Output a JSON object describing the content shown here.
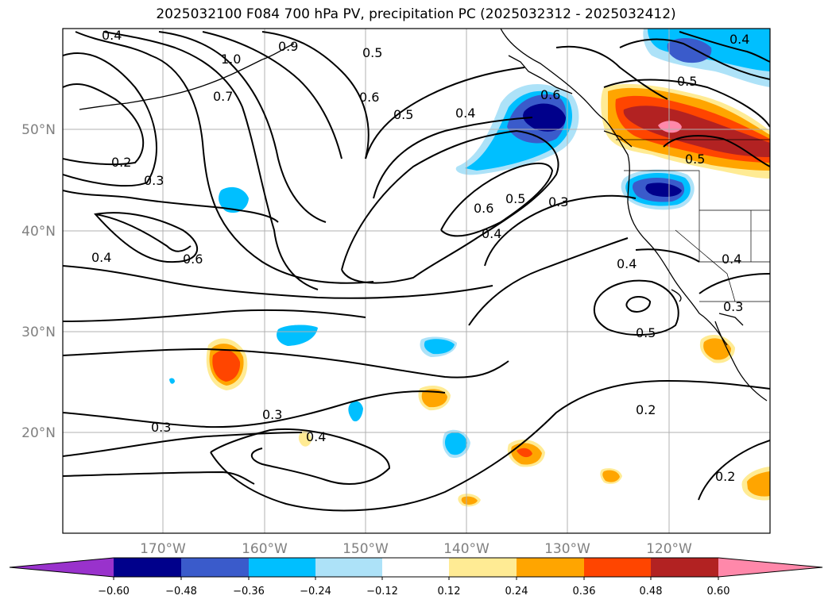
{
  "title": "2025032100 F084 700 hPa PV, precipitation PC (2025032312 - 2025032412)",
  "colors": {
    "neg_extreme": "#9932CC",
    "n060": "#00008B",
    "n048": "#3A5BCB",
    "n036": "#00BFFF",
    "n024": "#ADE2F8",
    "zero": "#FFFFFF",
    "p012": "#FFEB94",
    "p024": "#FFA500",
    "p036": "#FF4500",
    "p048": "#B22222",
    "p060": "#FF88AA"
  },
  "lat_labels": [
    "50°N",
    "40°N",
    "30°N",
    "20°N"
  ],
  "lon_labels": [
    "170°W",
    "160°W",
    "150°W",
    "140°W",
    "130°W",
    "120°W"
  ],
  "colorbar": {
    "ticks": [
      "−0.60",
      "−0.48",
      "−0.36",
      "−0.24",
      "−0.12",
      "0.12",
      "0.24",
      "0.36",
      "0.48",
      "0.60"
    ]
  },
  "contour_labels": {
    "l1": "0.4",
    "l2": "1.0",
    "l3": "0.7",
    "l4": "0.9",
    "l5": "0.5",
    "l6": "0.6",
    "l7": "0.5",
    "l8": "0.4",
    "l9": "0.6",
    "l10": "0.4",
    "l11": "0.5",
    "l12": "0.2",
    "l13": "0.3",
    "l14": "0.6",
    "l15": "0.4",
    "l16": "0.6",
    "l17": "0.5",
    "l18": "0.4",
    "l19": "0.3",
    "l20": "0.5",
    "l21": "0.4",
    "l22": "0.4",
    "l23": "0.5",
    "l24": "0.3",
    "l25": "0.3",
    "l26": "0.3",
    "l27": "0.4",
    "l28": "0.2",
    "l29": "0.2"
  }
}
